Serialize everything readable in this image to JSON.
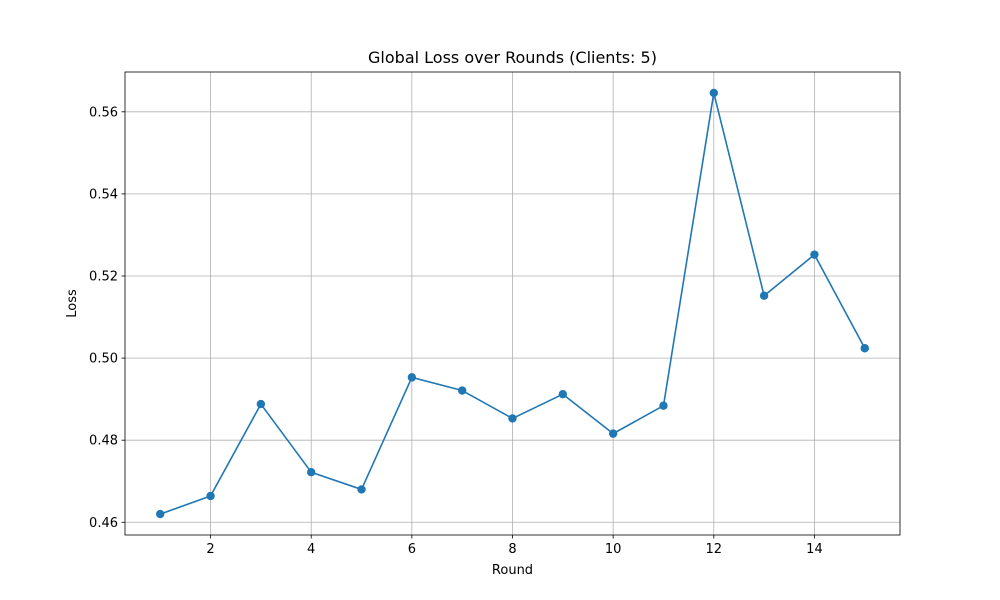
{
  "chart_data": {
    "type": "line",
    "title": "Global Loss over Rounds (Clients: 5)",
    "xlabel": "Round",
    "ylabel": "Loss",
    "x": [
      1,
      2,
      3,
      4,
      5,
      6,
      7,
      8,
      9,
      10,
      11,
      12,
      13,
      14,
      15
    ],
    "series": [
      {
        "values": [
          0.462,
          0.4664,
          0.4888,
          0.4722,
          0.468,
          0.4953,
          0.4921,
          0.4853,
          0.4912,
          0.4816,
          0.4884,
          0.5646,
          0.5152,
          0.5252,
          0.5024
        ]
      }
    ],
    "xlim": [
      0.3,
      15.7
    ],
    "ylim": [
      0.4569,
      0.5697
    ],
    "x_ticks": [
      2,
      4,
      6,
      8,
      10,
      12,
      14
    ],
    "x_tick_labels": [
      "2",
      "4",
      "6",
      "8",
      "10",
      "12",
      "14"
    ],
    "y_ticks": [
      0.46,
      0.48,
      0.5,
      0.52,
      0.54,
      0.56
    ],
    "y_tick_labels": [
      "0.46",
      "0.48",
      "0.50",
      "0.52",
      "0.54",
      "0.56"
    ],
    "grid": true,
    "marker": "circle",
    "color": "#1f77b4"
  }
}
